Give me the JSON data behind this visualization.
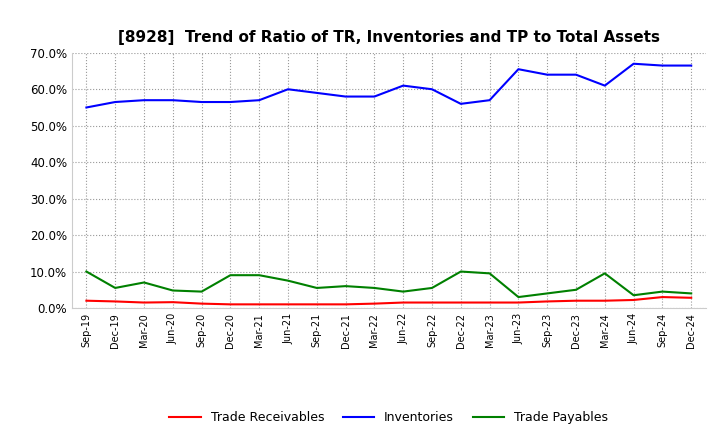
{
  "title": "[8928]  Trend of Ratio of TR, Inventories and TP to Total Assets",
  "x_labels": [
    "Sep-19",
    "Dec-19",
    "Mar-20",
    "Jun-20",
    "Sep-20",
    "Dec-20",
    "Mar-21",
    "Jun-21",
    "Sep-21",
    "Dec-21",
    "Mar-22",
    "Jun-22",
    "Sep-22",
    "Dec-22",
    "Mar-23",
    "Jun-23",
    "Sep-23",
    "Dec-23",
    "Mar-24",
    "Jun-24",
    "Sep-24",
    "Dec-24"
  ],
  "trade_receivables": [
    2.0,
    1.8,
    1.5,
    1.6,
    1.2,
    1.0,
    1.0,
    1.0,
    1.0,
    1.0,
    1.2,
    1.5,
    1.5,
    1.5,
    1.5,
    1.5,
    1.8,
    2.0,
    2.0,
    2.2,
    3.0,
    2.8
  ],
  "inventories": [
    55.0,
    56.5,
    57.0,
    57.0,
    56.5,
    56.5,
    57.0,
    60.0,
    59.0,
    58.0,
    58.0,
    61.0,
    60.0,
    56.0,
    57.0,
    65.5,
    64.0,
    64.0,
    61.0,
    67.0,
    66.5,
    66.5
  ],
  "trade_payables": [
    10.0,
    5.5,
    7.0,
    4.8,
    4.5,
    9.0,
    9.0,
    7.5,
    5.5,
    6.0,
    5.5,
    4.5,
    5.5,
    10.0,
    9.5,
    3.0,
    4.0,
    5.0,
    9.5,
    3.5,
    4.5,
    4.0
  ],
  "tr_color": "#ff0000",
  "inv_color": "#0000ff",
  "tp_color": "#008000",
  "ylim": [
    0.0,
    70.0
  ],
  "yticks": [
    0.0,
    10.0,
    20.0,
    30.0,
    40.0,
    50.0,
    60.0,
    70.0
  ],
  "background_color": "#ffffff",
  "grid_color": "#999999",
  "title_fontsize": 11,
  "legend_labels": [
    "Trade Receivables",
    "Inventories",
    "Trade Payables"
  ]
}
